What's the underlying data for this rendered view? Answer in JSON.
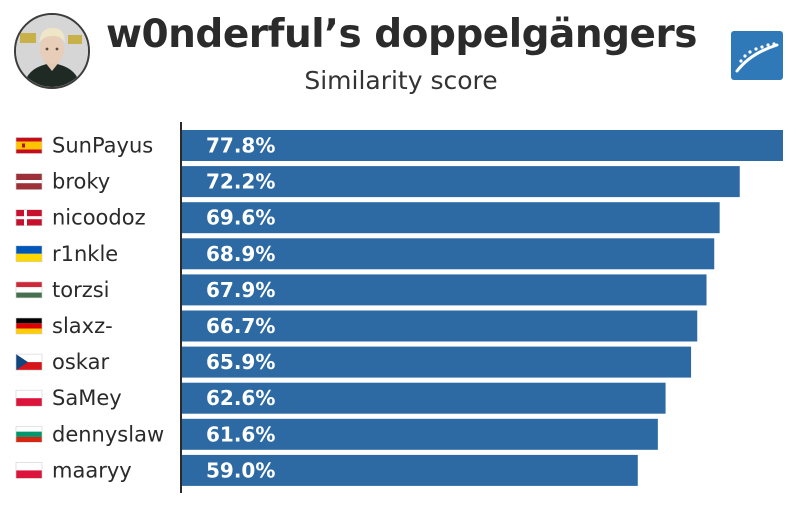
{
  "header": {
    "title": "w0nderful’s doppelgängers",
    "subtitle": "Similarity score"
  },
  "colors": {
    "bar": "#2d6aa3",
    "logo": "#2f79b8",
    "text": "#2b2b2b"
  },
  "chart_data": {
    "type": "bar",
    "orientation": "horizontal",
    "title": "w0nderful’s doppelgängers",
    "subtitle": "Similarity score",
    "categories": [
      "SunPayus",
      "broky",
      "nicoodoz",
      "r1nkle",
      "torzsi",
      "slaxz-",
      "oskar",
      "SaMey",
      "dennyslaw",
      "maaryy"
    ],
    "values": [
      77.8,
      72.2,
      69.6,
      68.9,
      67.9,
      66.7,
      65.9,
      62.6,
      61.6,
      59.0
    ],
    "value_labels": [
      "77.8%",
      "72.2%",
      "69.6%",
      "68.9%",
      "67.9%",
      "66.7%",
      "65.9%",
      "62.6%",
      "61.6%",
      "59.0%"
    ],
    "flags": [
      "spain-flag",
      "latvia-flag",
      "denmark-flag",
      "ukraine-flag",
      "hungary-flag",
      "germany-flag",
      "czech-flag",
      "poland-flag",
      "bulgaria-flag",
      "poland-flag"
    ],
    "xlim": [
      0,
      77.8
    ],
    "grid": false,
    "legend": "none"
  }
}
